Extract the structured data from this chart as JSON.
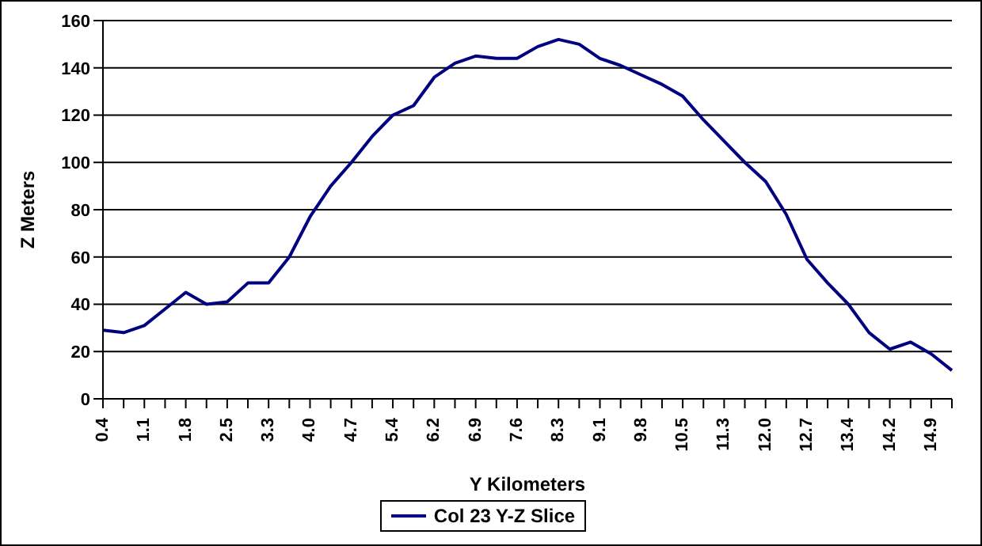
{
  "chart_data": {
    "type": "line",
    "xlabel": "Y Kilometers",
    "ylabel": "Z Meters",
    "categories": [
      "0.4",
      null,
      "1.1",
      null,
      "1.8",
      null,
      "2.5",
      null,
      "3.3",
      null,
      "4.0",
      null,
      "4.7",
      null,
      "5.4",
      null,
      "6.2",
      null,
      "6.9",
      null,
      "7.6",
      null,
      "8.3",
      null,
      "9.1",
      null,
      "9.8",
      null,
      "10.5",
      null,
      "11.3",
      null,
      "12.0",
      null,
      "12.7",
      null,
      "13.4",
      null,
      "14.2",
      null,
      "14.9",
      null
    ],
    "series": [
      {
        "name": "Col 23 Y-Z Slice",
        "color": "#000080",
        "values": [
          29,
          28,
          31,
          38,
          45,
          40,
          41,
          49,
          49,
          60,
          77,
          90,
          100,
          111,
          120,
          124,
          136,
          142,
          145,
          144,
          144,
          149,
          152,
          150,
          144,
          141,
          137,
          133,
          128,
          118,
          109,
          100,
          92,
          78,
          59,
          49,
          40,
          28,
          21,
          24,
          19,
          12
        ]
      }
    ],
    "ylim": [
      0,
      160
    ],
    "yticks": [
      0,
      20,
      40,
      60,
      80,
      100,
      120,
      140,
      160
    ],
    "grid": "y",
    "legend": "bottom",
    "marker": "none",
    "line_style": "solid"
  }
}
